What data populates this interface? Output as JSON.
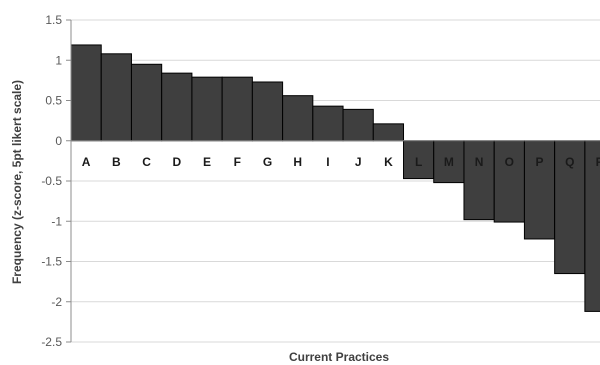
{
  "chart_data": {
    "type": "bar",
    "title": "",
    "xlabel": "Current Practices",
    "ylabel": "Frequency (z-score, 5pt likert scale)",
    "categories": [
      "A",
      "B",
      "C",
      "D",
      "E",
      "F",
      "G",
      "H",
      "I",
      "J",
      "K",
      "L",
      "M",
      "N",
      "O",
      "P",
      "Q",
      "R"
    ],
    "values": [
      1.19,
      1.08,
      0.95,
      0.84,
      0.79,
      0.79,
      0.73,
      0.56,
      0.43,
      0.39,
      0.21,
      -0.47,
      -0.52,
      -0.98,
      -1.01,
      -1.22,
      -1.65,
      -2.12
    ],
    "ylim": [
      -2.5,
      1.5
    ],
    "yticks": [
      1.5,
      1,
      0.5,
      0,
      -0.5,
      -1,
      -1.5,
      -2,
      -2.5
    ],
    "ytick_labels": [
      "1.5",
      "1",
      "0.5",
      "0",
      "-0.5",
      "-1",
      "-1.5",
      "-2",
      "-2.5"
    ],
    "grid": true,
    "legend": "none",
    "colors": {
      "bar_fill": "#3f3f3f",
      "bar_stroke": "#000000",
      "grid": "#d9d9d9"
    }
  }
}
